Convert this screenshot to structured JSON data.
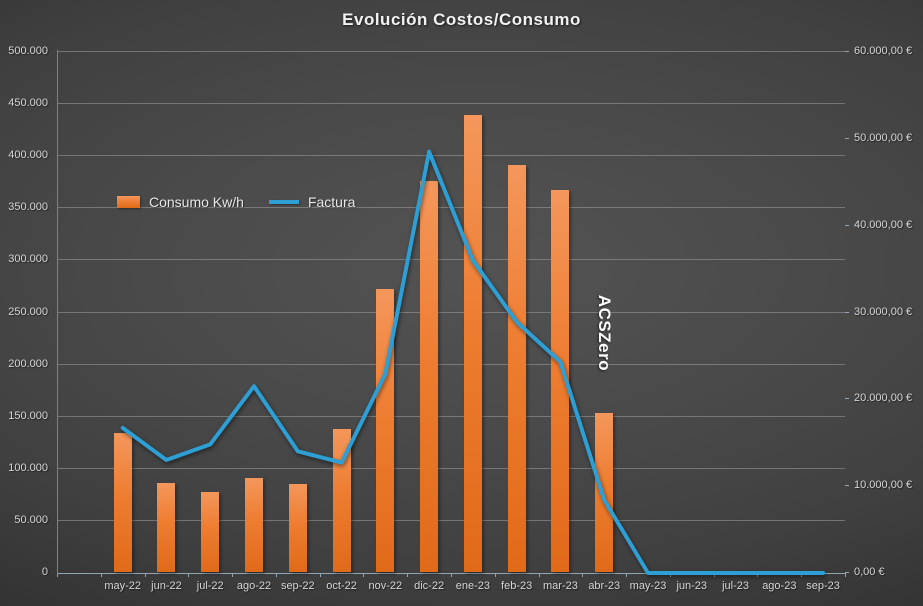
{
  "title": "Evolución Costos/Consumo",
  "legend": {
    "consumo_label": "Consumo Kw/h",
    "factura_label": "Factura"
  },
  "annotation": {
    "text": "ACSZero"
  },
  "colors": {
    "bar_orange": "#ED7D31",
    "line_blue": "#2E9FD4",
    "background_dark": "#3d3d3d",
    "gridline": "#9e9e9e",
    "axis_line": "#5E8CA6",
    "tick_text": "#D6D6D6",
    "title_text": "#F2F2F2"
  },
  "chart_data": {
    "type": "bar",
    "subtype": "combo bar+line, dual axis",
    "title": "Evolución Costos/Consumo",
    "categories": [
      "may-22",
      "jun-22",
      "jul-22",
      "ago-22",
      "sep-22",
      "oct-22",
      "nov-22",
      "dic-22",
      "ene-23",
      "feb-23",
      "mar-23",
      "abr-23",
      "may-23",
      "jun-23",
      "jul-23",
      "ago-23",
      "sep-23"
    ],
    "series": [
      {
        "name": "Consumo Kw/h",
        "type": "bar",
        "axis": "left",
        "color": "#ED7D31",
        "values": [
          133000,
          85000,
          77000,
          90000,
          84000,
          137000,
          272000,
          375000,
          439000,
          391000,
          367000,
          153000,
          0,
          0,
          0,
          0,
          0
        ]
      },
      {
        "name": "Factura",
        "type": "line",
        "axis": "right",
        "color": "#2E9FD4",
        "values": [
          16600,
          12900,
          14700,
          21400,
          13900,
          12600,
          22800,
          48400,
          35900,
          28800,
          24200,
          8300,
          0,
          0,
          0,
          0,
          0
        ]
      }
    ],
    "left_axis": {
      "min": 0,
      "max": 500000,
      "step": 50000,
      "tick_labels": [
        "0",
        "50.000",
        "100.000",
        "150.000",
        "200.000",
        "250.000",
        "300.000",
        "350.000",
        "400.000",
        "450.000",
        "500.000"
      ]
    },
    "right_axis": {
      "min": 0,
      "max": 60000,
      "step": 10000,
      "tick_labels": [
        "0,00 €",
        "10.000,00 €",
        "20.000,00 €",
        "30.000,00 €",
        "40.000,00 €",
        "50.000,00 €",
        "60.000,00 €"
      ]
    },
    "grid": true,
    "legend_position": "inside-top-left",
    "annotation": "ACSZero (vertical label above abr-23 bar)"
  }
}
